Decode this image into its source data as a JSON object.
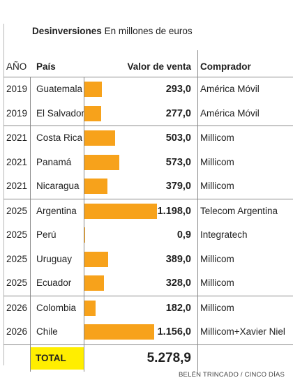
{
  "header": {
    "title_bold": "Desinversiones",
    "title_rest": "En millones de euros"
  },
  "columns": {
    "year": "AÑO",
    "country": "País",
    "value": "Valor de venta",
    "buyer": "Comprador"
  },
  "chart_data": {
    "type": "bar",
    "title": "Desinversiones En millones de euros",
    "rows": [
      {
        "year": "2019",
        "country": "Guatemala",
        "value": 293.0,
        "value_label": "293,0",
        "buyer": "América Móvil"
      },
      {
        "year": "2019",
        "country": "El Salvador",
        "value": 277.0,
        "value_label": "277,0",
        "buyer": "América Móvil"
      },
      {
        "year": "2021",
        "country": "Costa Rica",
        "value": 503.0,
        "value_label": "503,0",
        "buyer": "Millicom"
      },
      {
        "year": "2021",
        "country": "Panamá",
        "value": 573.0,
        "value_label": "573,0",
        "buyer": "Millicom"
      },
      {
        "year": "2021",
        "country": "Nicaragua",
        "value": 379.0,
        "value_label": "379,0",
        "buyer": "Millicom"
      },
      {
        "year": "2025",
        "country": "Argentina",
        "value": 1198.0,
        "value_label": "1.198,0",
        "buyer": "Telecom Argentina"
      },
      {
        "year": "2025",
        "country": "Perú",
        "value": 0.9,
        "value_label": "0,9",
        "buyer": "Integratech"
      },
      {
        "year": "2025",
        "country": "Uruguay",
        "value": 389.0,
        "value_label": "389,0",
        "buyer": "Millicom"
      },
      {
        "year": "2025",
        "country": "Ecuador",
        "value": 328.0,
        "value_label": "328,0",
        "buyer": "Millicom"
      },
      {
        "year": "2026",
        "country": "Colombia",
        "value": 182.0,
        "value_label": "182,0",
        "buyer": "Millicom"
      },
      {
        "year": "2026",
        "country": "Chile",
        "value": 1156.0,
        "value_label": "1.156,0",
        "buyer": "Millicom+Xavier Niel"
      }
    ],
    "total_label": "TOTAL",
    "total_value": "5.278,9",
    "bar_color": "#f7a21b",
    "highlight_color": "#ffee00"
  },
  "footer": {
    "credit": "BELÉN TRINCADO / CINCO DÍAS"
  }
}
